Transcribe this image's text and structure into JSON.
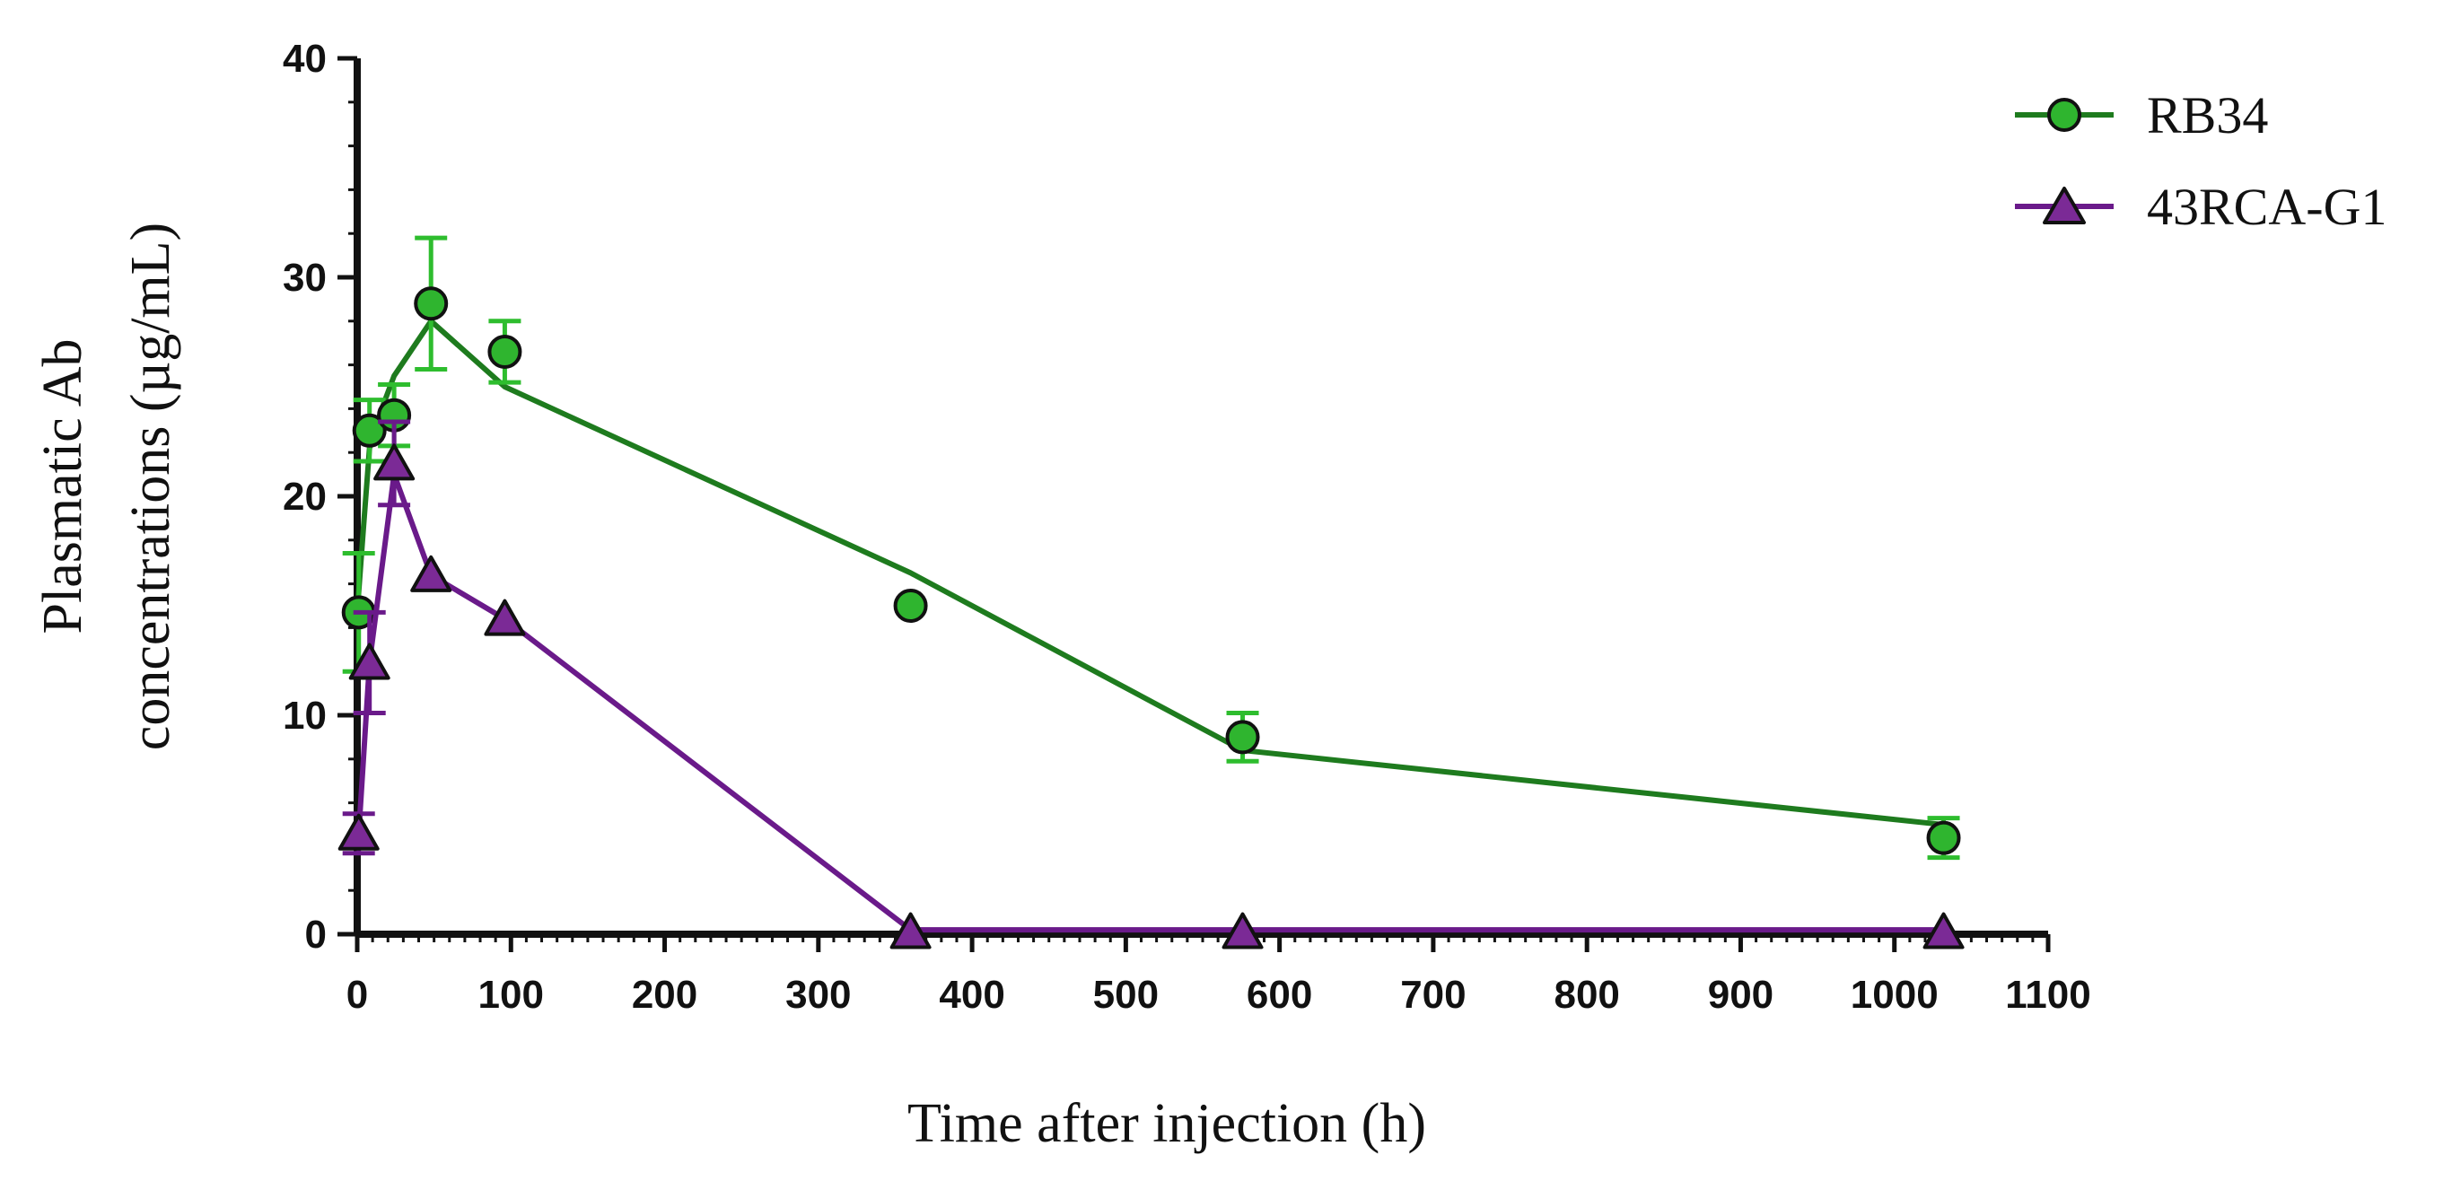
{
  "chart_data": {
    "type": "line",
    "title": "",
    "xlabel": "Time after injection (h)",
    "ylabel_lines": [
      "Plasmatic Ab",
      "concentrations (µg/mL)"
    ],
    "xlim": [
      0,
      1100
    ],
    "ylim": [
      0,
      40
    ],
    "x_ticks": [
      0,
      100,
      200,
      300,
      400,
      500,
      600,
      700,
      800,
      900,
      1000,
      1100
    ],
    "y_ticks": [
      0,
      10,
      20,
      30,
      40
    ],
    "grid": false,
    "legend_position": "top-right",
    "series": [
      {
        "name": "RB34",
        "marker": "circle",
        "line_color": "#1e7b1e",
        "marker_color": "#2fb52f",
        "error_color": "#2ebd2e",
        "x": [
          1,
          8,
          24,
          48,
          96,
          360,
          576,
          1032
        ],
        "y": [
          14.7,
          23.0,
          23.7,
          28.8,
          26.6,
          15.0,
          9.0,
          4.4
        ],
        "error": [
          2.7,
          1.4,
          1.4,
          3.0,
          1.4,
          0.0,
          1.1,
          0.9
        ],
        "fit_x": [
          0,
          4,
          8,
          16,
          24,
          48,
          96,
          360,
          576,
          1032
        ],
        "fit_y": [
          14.7,
          18.5,
          22.2,
          24.0,
          25.5,
          28.0,
          25.0,
          16.5,
          8.4,
          5.0
        ]
      },
      {
        "name": "43RCA-G1",
        "marker": "triangle",
        "line_color": "#6a1a8a",
        "marker_color": "#7b2a96",
        "error_color": "#6a1a8a",
        "x": [
          1,
          8,
          24,
          48,
          96,
          360,
          576,
          1032
        ],
        "y": [
          4.6,
          12.4,
          21.5,
          16.4,
          14.4,
          0.1,
          0.1,
          0.1
        ],
        "error": [
          0.9,
          2.3,
          1.9,
          0.0,
          0.0,
          0.0,
          0.0,
          0.0
        ],
        "fit_x": [
          1,
          8,
          24,
          48,
          96,
          360,
          576,
          1032
        ],
        "fit_y": [
          4.6,
          12.4,
          21.0,
          16.4,
          14.4,
          0.2,
          0.2,
          0.2
        ]
      }
    ]
  }
}
